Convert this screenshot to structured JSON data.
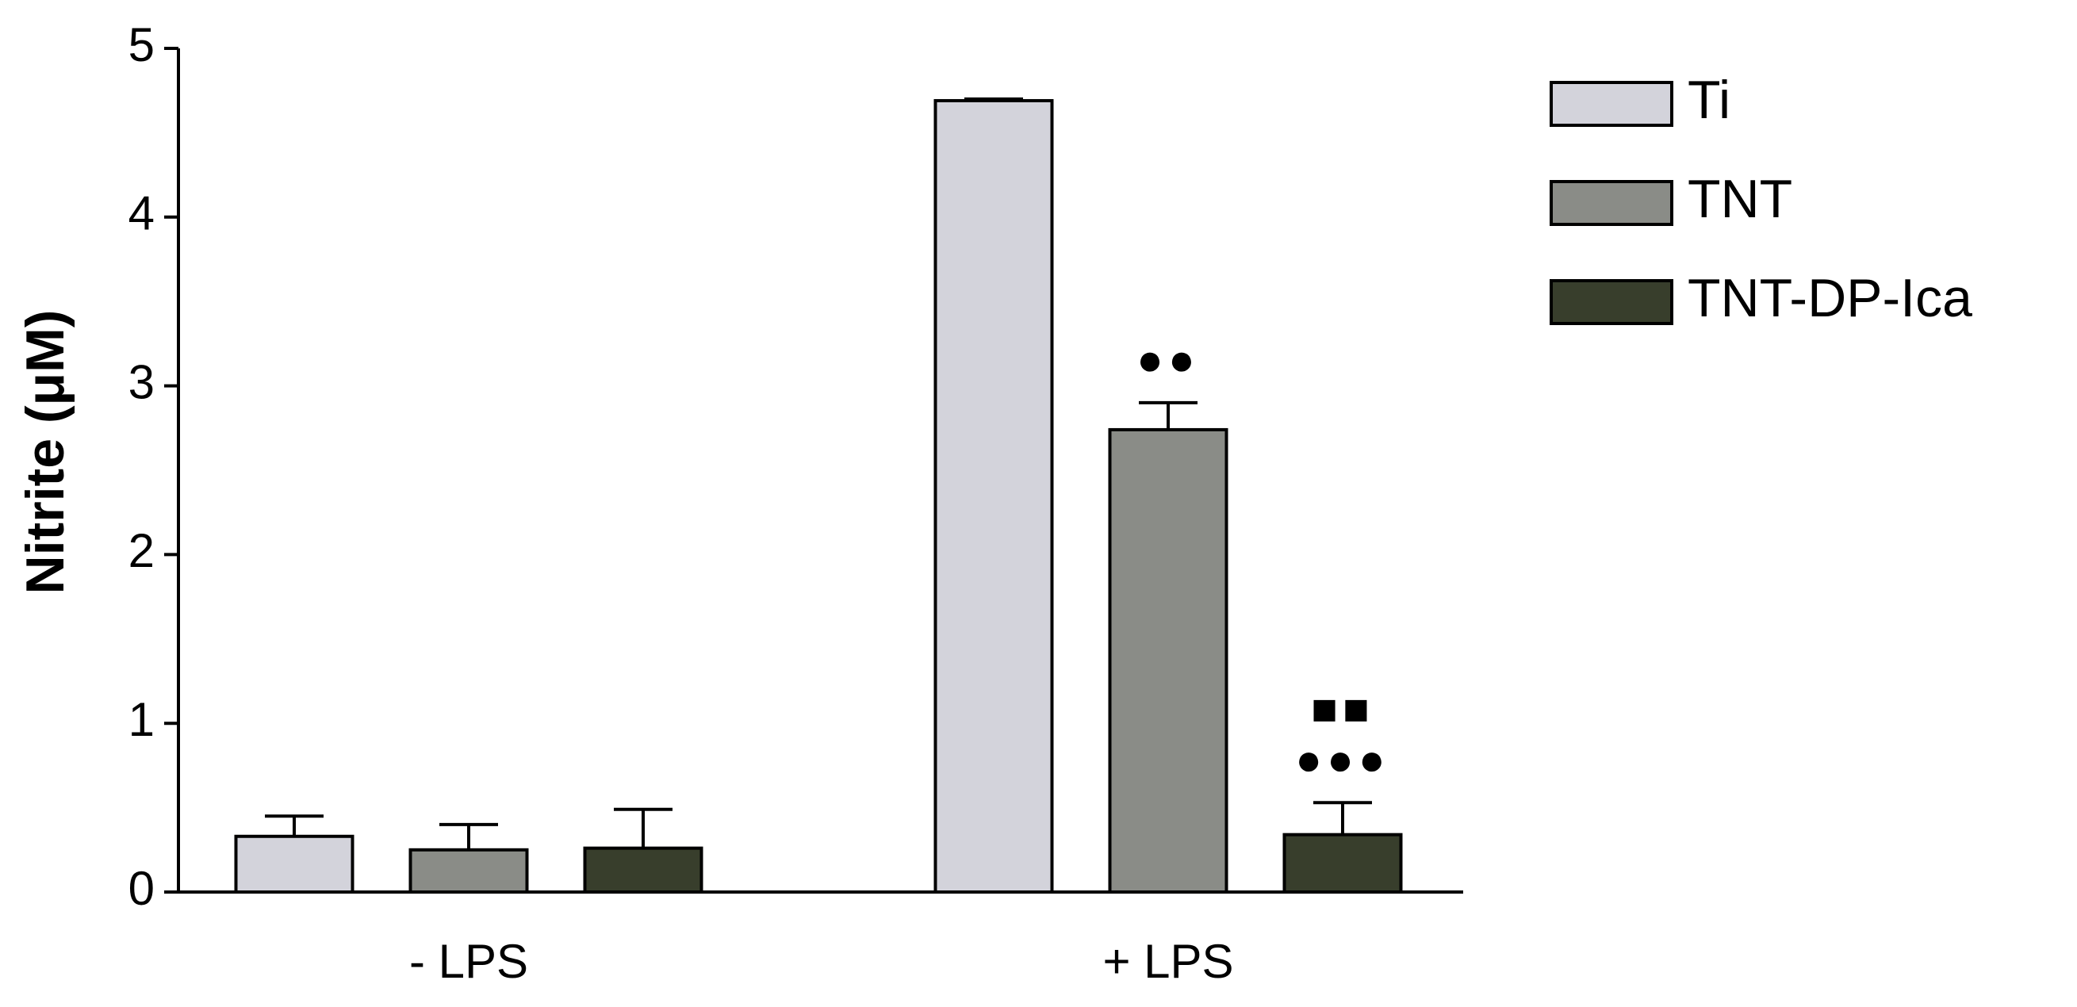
{
  "chart_data": {
    "type": "bar",
    "y_label": "Nitrite (μM)",
    "categories": [
      "- LPS",
      "+ LPS"
    ],
    "series": [
      {
        "name": "Ti",
        "color": "#d3d3db",
        "values": [
          0.33,
          4.69
        ],
        "errors": [
          0.12,
          0.01
        ],
        "markers": [
          null,
          null
        ]
      },
      {
        "name": "TNT",
        "color": "#8a8c87",
        "values": [
          0.25,
          2.74
        ],
        "errors": [
          0.15,
          0.16
        ],
        "markers": [
          null,
          [
            "●●"
          ]
        ]
      },
      {
        "name": "TNT-DP-Ica",
        "color": "#383e2c",
        "values": [
          0.26,
          0.34
        ],
        "errors": [
          0.23,
          0.19
        ],
        "markers": [
          null,
          [
            "●●●",
            "■■"
          ]
        ]
      }
    ],
    "ylim": [
      0,
      5
    ],
    "yticks": [
      0,
      1,
      2,
      3,
      4,
      5
    ],
    "grid": false,
    "legend": "top-right"
  }
}
